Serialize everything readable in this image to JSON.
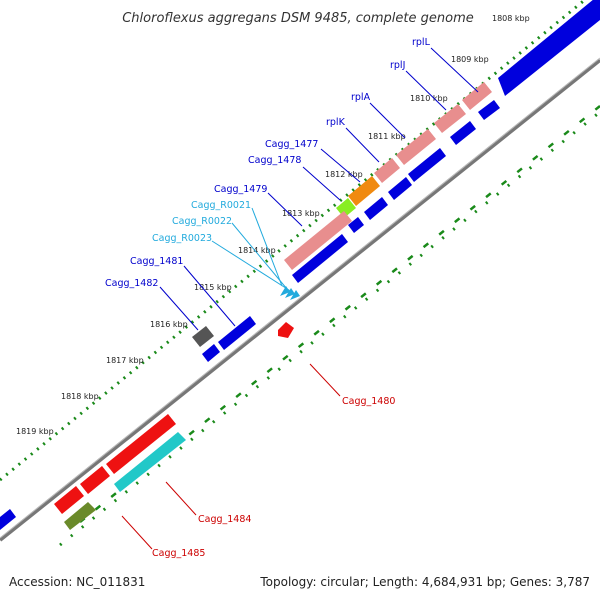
{
  "title": "Chloroflexus aggregans DSM 9485, complete genome",
  "footer": {
    "accession": "Accession: NC_011831",
    "summary": "Topology: circular; Length: 4,684,931 bp; Genes: 3,787"
  },
  "colors": {
    "backbone": "#888888",
    "tick": "#1a8a1a",
    "blue_gene": "#0000dd",
    "pink_gene": "#e88e8e",
    "red_gene": "#ee1111",
    "cyan_gene": "#22c8c8",
    "orange_gene": "#f08a10",
    "lime_gene": "#88ee22",
    "olive_gene": "#6a8a2a",
    "gray_gene": "#555555",
    "label_blue": "#0000cc",
    "label_cyan": "#22aadd",
    "label_red": "#cc0000"
  },
  "kbp_labels": [
    {
      "id": "kbp-1808",
      "text": "1808 kbp"
    },
    {
      "id": "kbp-1809",
      "text": "1809 kbp"
    },
    {
      "id": "kbp-1810",
      "text": "1810 kbp"
    },
    {
      "id": "kbp-1811",
      "text": "1811 kbp"
    },
    {
      "id": "kbp-1812",
      "text": "1812 kbp"
    },
    {
      "id": "kbp-1813",
      "text": "1813 kbp"
    },
    {
      "id": "kbp-1814",
      "text": "1814 kbp"
    },
    {
      "id": "kbp-1815",
      "text": "1815 kbp"
    },
    {
      "id": "kbp-1816",
      "text": "1816 kbp"
    },
    {
      "id": "kbp-1817",
      "text": "1817 kbp"
    },
    {
      "id": "kbp-1818",
      "text": "1818 kbp"
    },
    {
      "id": "kbp-1819",
      "text": "1819 kbp"
    }
  ],
  "gene_labels": [
    {
      "id": "rplL",
      "text": "rplL"
    },
    {
      "id": "rplJ",
      "text": "rplJ"
    },
    {
      "id": "rplA",
      "text": "rplA"
    },
    {
      "id": "rplK",
      "text": "rplK"
    },
    {
      "id": "cagg1477",
      "text": "Cagg_1477"
    },
    {
      "id": "cagg1478",
      "text": "Cagg_1478"
    },
    {
      "id": "cagg1479",
      "text": "Cagg_1479"
    },
    {
      "id": "caggR0021",
      "text": "Cagg_R0021"
    },
    {
      "id": "caggR0022",
      "text": "Cagg_R0022"
    },
    {
      "id": "caggR0023",
      "text": "Cagg_R0023"
    },
    {
      "id": "cagg1481",
      "text": "Cagg_1481"
    },
    {
      "id": "cagg1482",
      "text": "Cagg_1482"
    },
    {
      "id": "cagg1480",
      "text": "Cagg_1480"
    },
    {
      "id": "cagg1484",
      "text": "Cagg_1484"
    },
    {
      "id": "cagg1485",
      "text": "Cagg_1485"
    }
  ]
}
